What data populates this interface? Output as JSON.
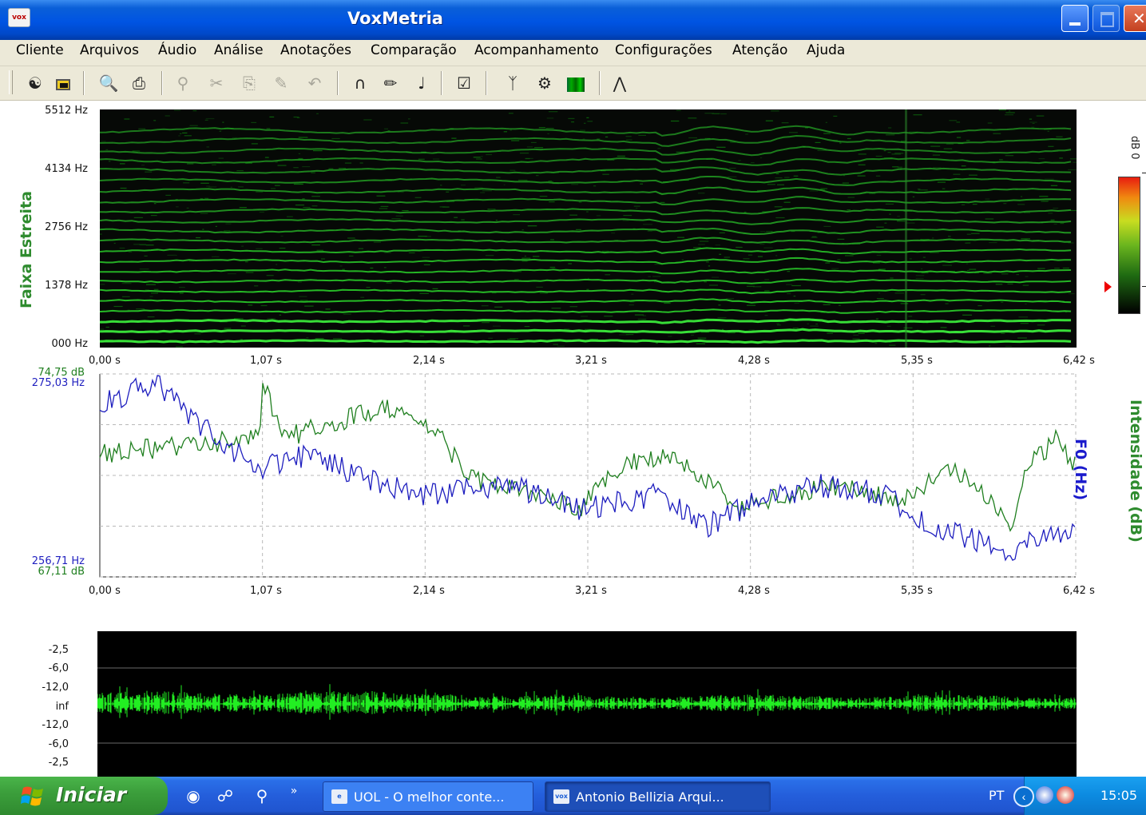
{
  "window": {
    "title": "VoxMetria",
    "app_icon": "vox-app-icon",
    "controls": [
      "minimize",
      "maximize",
      "close"
    ]
  },
  "menu": [
    "Cliente",
    "Arquivos",
    "Áudio",
    "Análise",
    "Anotações",
    "Comparação",
    "Acompanhamento",
    "Configurações",
    "Atenção",
    "Ajuda"
  ],
  "toolbar": {
    "icons": [
      "client-icon",
      "record-icon",
      "print-preview-icon",
      "print-icon",
      "zoom-icon",
      "cut-icon",
      "copy-icon",
      "paste-icon",
      "undo-icon",
      "headphones-icon",
      "analysis-icon",
      "speaker-icon",
      "annotation-icon",
      "compare-icon",
      "settings-icon",
      "spectrogram-icon",
      "chart-icon"
    ]
  },
  "spectrogram": {
    "panel_label": "Faixa Estreita",
    "y_ticks": [
      "5512 Hz",
      "4134 Hz",
      "2756 Hz",
      "1378 Hz",
      "000 Hz"
    ],
    "x_ticks": [
      "0,00 s",
      "1,07 s",
      "2,14 s",
      "3,21 s",
      "4,28 s",
      "5,35 s",
      "6,42 s"
    ],
    "colorbar_label": "dB 0"
  },
  "curves_panel": {
    "intensity_max": "74,75 dB",
    "f0_max": "275,03 Hz",
    "f0_min": "256,71 Hz",
    "intensity_min": "67,11 dB",
    "f0_axis_label": "F0 (Hz)",
    "intensity_axis_label": "Intensidade (dB)",
    "x_ticks": [
      "0,00 s",
      "1,07 s",
      "2,14 s",
      "3,21 s",
      "4,28 s",
      "5,35 s",
      "6,42 s"
    ],
    "colors": {
      "f0": "#1f1fbf",
      "intensity": "#1f7f1f"
    }
  },
  "waveform": {
    "y_ticks": [
      "-2,5",
      "-6,0",
      "-12,0",
      "inf",
      "-12,0",
      "-6,0",
      "-2,5"
    ],
    "color": "#22ee22"
  },
  "taskbar": {
    "start_label": "Iniciar",
    "quick_launch": [
      "ie-icon",
      "browser-icon",
      "search-icon",
      "more-icon"
    ],
    "tasks": [
      {
        "label": "UOL - O melhor conte...",
        "icon": "ie-page-icon"
      },
      {
        "label": "Antonio Bellizia  Arqui...",
        "icon": "vox-app-icon"
      }
    ],
    "language": "PT",
    "clock": "15:05"
  }
}
